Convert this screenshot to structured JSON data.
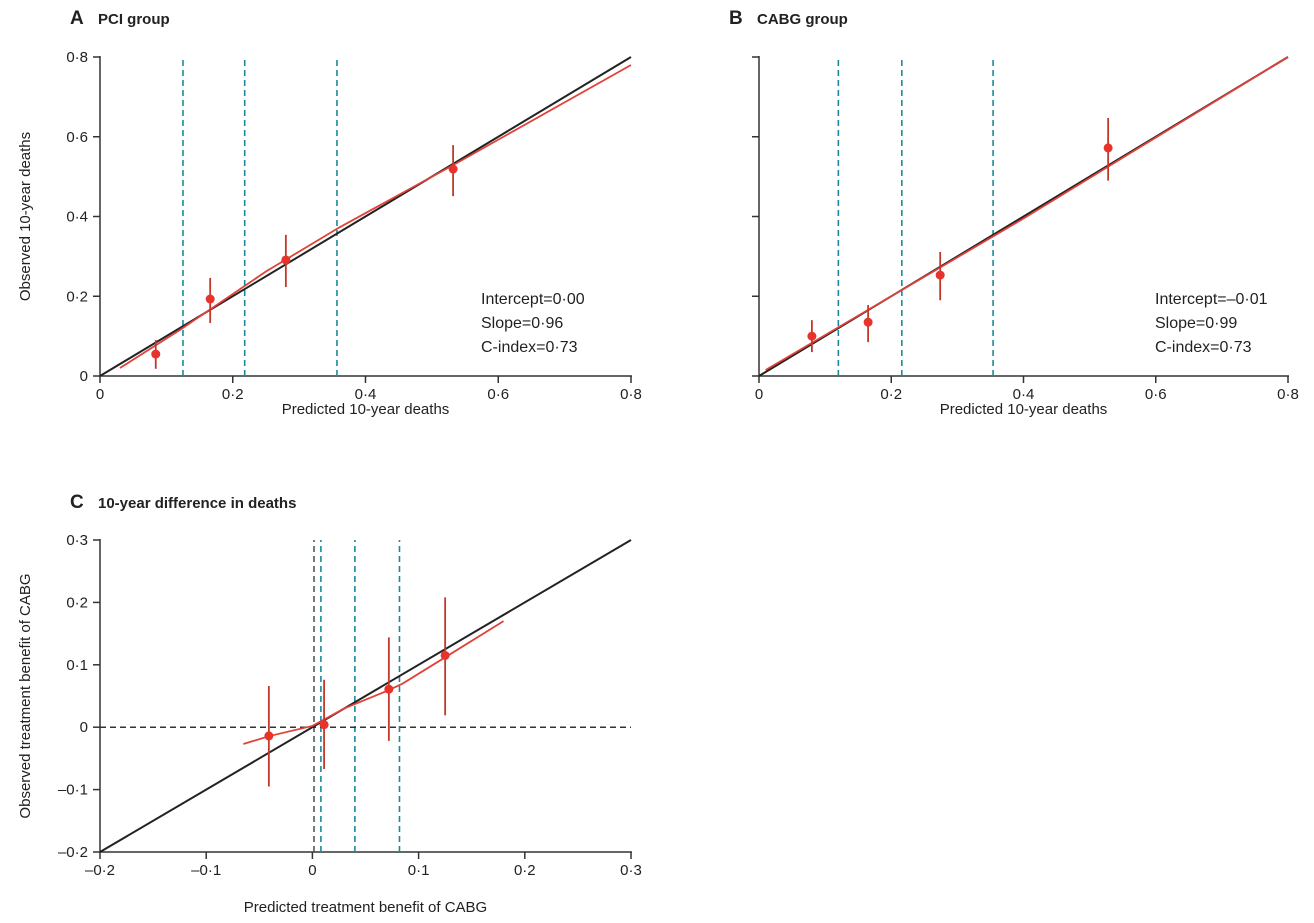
{
  "colors": {
    "ref_line": "#222222",
    "fit": "#e0413a",
    "points": "#e8332b",
    "errbar": "#c0392b",
    "vline": "#1a8a9a",
    "vline_dark": "#4a5a60",
    "axis": "#333333"
  },
  "chart_data": [
    {
      "id": "A",
      "letter": "A",
      "title": "PCI group",
      "type": "scatter",
      "xlabel": "Predicted 10-year deaths",
      "ylabel": "Observed 10-year deaths",
      "xlim": [
        0,
        0.8
      ],
      "ylim": [
        0,
        0.8
      ],
      "xticks": [
        {
          "v": 0,
          "label": "0"
        },
        {
          "v": 0.2,
          "label": "0·2"
        },
        {
          "v": 0.4,
          "label": "0·4"
        },
        {
          "v": 0.6,
          "label": "0·6"
        },
        {
          "v": 0.8,
          "label": "0·8"
        }
      ],
      "yticks": [
        {
          "v": 0,
          "label": "0"
        },
        {
          "v": 0.2,
          "label": "0·2"
        },
        {
          "v": 0.4,
          "label": "0·4"
        },
        {
          "v": 0.6,
          "label": "0·6"
        },
        {
          "v": 0.8,
          "label": "0·8"
        }
      ],
      "reference_line": [
        [
          0,
          0
        ],
        [
          0.8,
          0.8
        ]
      ],
      "vlines": [
        {
          "x": 0.125,
          "style": "teal"
        },
        {
          "x": 0.218,
          "style": "teal"
        },
        {
          "x": 0.357,
          "style": "teal"
        }
      ],
      "points": [
        {
          "x": 0.084,
          "y": 0.055,
          "lo": 0.018,
          "hi": 0.09
        },
        {
          "x": 0.166,
          "y": 0.193,
          "lo": 0.133,
          "hi": 0.246
        },
        {
          "x": 0.28,
          "y": 0.291,
          "lo": 0.223,
          "hi": 0.354
        },
        {
          "x": 0.532,
          "y": 0.519,
          "lo": 0.451,
          "hi": 0.579
        }
      ],
      "fit_curve": [
        [
          0.03,
          0.02
        ],
        [
          0.12,
          0.115
        ],
        [
          0.25,
          0.262
        ],
        [
          0.36,
          0.372
        ],
        [
          0.53,
          0.527
        ],
        [
          0.8,
          0.78
        ]
      ],
      "stats": [
        "Intercept=0·00",
        "Slope=0·96",
        "C-index=0·73"
      ]
    },
    {
      "id": "B",
      "letter": "B",
      "title": "CABG group",
      "type": "scatter",
      "xlabel": "Predicted 10-year deaths",
      "ylabel": "",
      "xlim": [
        0,
        0.8
      ],
      "ylim": [
        0,
        0.8
      ],
      "xticks": [
        {
          "v": 0,
          "label": "0"
        },
        {
          "v": 0.2,
          "label": "0·2"
        },
        {
          "v": 0.4,
          "label": "0·4"
        },
        {
          "v": 0.6,
          "label": "0·6"
        },
        {
          "v": 0.8,
          "label": "0·8"
        }
      ],
      "yticks": [
        {
          "v": 0,
          "label": ""
        },
        {
          "v": 0.2,
          "label": ""
        },
        {
          "v": 0.4,
          "label": ""
        },
        {
          "v": 0.6,
          "label": ""
        },
        {
          "v": 0.8,
          "label": ""
        }
      ],
      "reference_line": [
        [
          0,
          0
        ],
        [
          0.8,
          0.8
        ]
      ],
      "vlines": [
        {
          "x": 0.12,
          "style": "teal"
        },
        {
          "x": 0.216,
          "style": "teal"
        },
        {
          "x": 0.354,
          "style": "teal"
        }
      ],
      "points": [
        {
          "x": 0.08,
          "y": 0.1,
          "lo": 0.06,
          "hi": 0.14
        },
        {
          "x": 0.165,
          "y": 0.135,
          "lo": 0.085,
          "hi": 0.178
        },
        {
          "x": 0.274,
          "y": 0.253,
          "lo": 0.19,
          "hi": 0.311
        },
        {
          "x": 0.528,
          "y": 0.572,
          "lo": 0.49,
          "hi": 0.647
        }
      ],
      "fit_curve": [
        [
          0.01,
          0.015
        ],
        [
          0.2,
          0.2
        ],
        [
          0.4,
          0.395
        ],
        [
          0.6,
          0.598
        ],
        [
          0.8,
          0.8
        ]
      ],
      "stats": [
        "Intercept=–0·01",
        "Slope=0·99",
        "C-index=0·73"
      ]
    },
    {
      "id": "C",
      "letter": "C",
      "title": "10-year difference in deaths",
      "type": "scatter",
      "xlabel": "Predicted treatment benefit of CABG",
      "ylabel": "Observed treatment benefit of CABG",
      "xlim": [
        -0.2,
        0.3
      ],
      "ylim": [
        -0.2,
        0.3
      ],
      "xticks": [
        {
          "v": -0.2,
          "label": "–0·2"
        },
        {
          "v": -0.1,
          "label": "–0·1"
        },
        {
          "v": 0,
          "label": "0"
        },
        {
          "v": 0.1,
          "label": "0·1"
        },
        {
          "v": 0.2,
          "label": "0·2"
        },
        {
          "v": 0.3,
          "label": "0·3"
        }
      ],
      "yticks": [
        {
          "v": -0.2,
          "label": "–0·2"
        },
        {
          "v": -0.1,
          "label": "–0·1"
        },
        {
          "v": 0,
          "label": "0"
        },
        {
          "v": 0.1,
          "label": "0·1"
        },
        {
          "v": 0.2,
          "label": "0·2"
        },
        {
          "v": 0.3,
          "label": "0·3"
        }
      ],
      "reference_line": [
        [
          -0.2,
          -0.2
        ],
        [
          0.3,
          0.3
        ]
      ],
      "hline_zero": true,
      "vlines": [
        {
          "x": 0.0015,
          "style": "dark"
        },
        {
          "x": 0.008,
          "style": "teal"
        },
        {
          "x": 0.04,
          "style": "teal"
        },
        {
          "x": 0.082,
          "style": "teal"
        }
      ],
      "points": [
        {
          "x": -0.041,
          "y": -0.014,
          "lo": -0.095,
          "hi": 0.066
        },
        {
          "x": 0.011,
          "y": 0.004,
          "lo": -0.067,
          "hi": 0.076
        },
        {
          "x": 0.072,
          "y": 0.061,
          "lo": -0.022,
          "hi": 0.144
        },
        {
          "x": 0.125,
          "y": 0.115,
          "lo": 0.019,
          "hi": 0.208
        }
      ],
      "fit_curve": [
        [
          -0.065,
          -0.027
        ],
        [
          -0.04,
          -0.014
        ],
        [
          0.0,
          0.002
        ],
        [
          0.03,
          0.03
        ],
        [
          0.07,
          0.058
        ],
        [
          0.085,
          0.07
        ],
        [
          0.125,
          0.112
        ],
        [
          0.18,
          0.17
        ]
      ],
      "stats": []
    }
  ]
}
